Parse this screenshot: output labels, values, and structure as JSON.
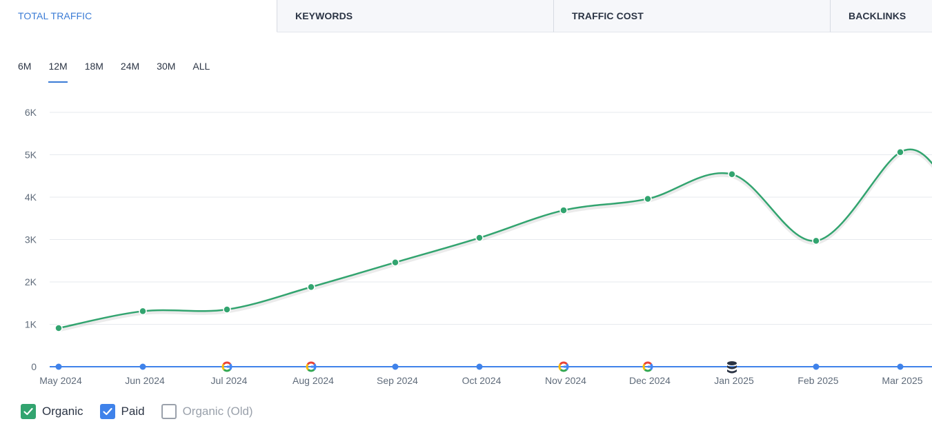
{
  "tabs": [
    {
      "label": "TOTAL TRAFFIC",
      "active": true
    },
    {
      "label": "KEYWORDS",
      "active": false
    },
    {
      "label": "TRAFFIC COST",
      "active": false
    },
    {
      "label": "BACKLINKS",
      "active": false
    }
  ],
  "periods": [
    "6M",
    "12M",
    "18M",
    "24M",
    "30M",
    "ALL"
  ],
  "selected_period": "12M",
  "legend": [
    {
      "label": "Organic",
      "checked": true,
      "color": "#32a46f"
    },
    {
      "label": "Paid",
      "checked": true,
      "color": "#3f82ea"
    },
    {
      "label": "Organic (Old)",
      "checked": false,
      "color": "#9aa1ab"
    }
  ],
  "chart_data": {
    "type": "line",
    "x": [
      "May 2024",
      "Jun 2024",
      "Jul 2024",
      "Aug 2024",
      "Sep 2024",
      "Oct 2024",
      "Nov 2024",
      "Dec 2024",
      "Jan 2025",
      "Feb 2025",
      "Mar 2025"
    ],
    "y_ticks": [
      "0",
      "1K",
      "2K",
      "3K",
      "4K",
      "5K",
      "6K"
    ],
    "ylim": [
      0,
      6000
    ],
    "grid": true,
    "series": [
      {
        "name": "Organic",
        "color": "#32a46f",
        "values": [
          910,
          1310,
          1350,
          1880,
          2460,
          3040,
          3690,
          3960,
          4540,
          2970,
          5060
        ],
        "continues_after_last": 4600
      },
      {
        "name": "Paid",
        "color": "#3f82ea",
        "values": [
          0,
          0,
          0,
          0,
          0,
          0,
          0,
          0,
          0,
          0,
          0
        ]
      }
    ],
    "markers": [
      "dot",
      "dot",
      "google-icon",
      "google-icon",
      "dot",
      "dot",
      "google-icon",
      "google-icon",
      "database-icon",
      "dot",
      "dot"
    ]
  }
}
